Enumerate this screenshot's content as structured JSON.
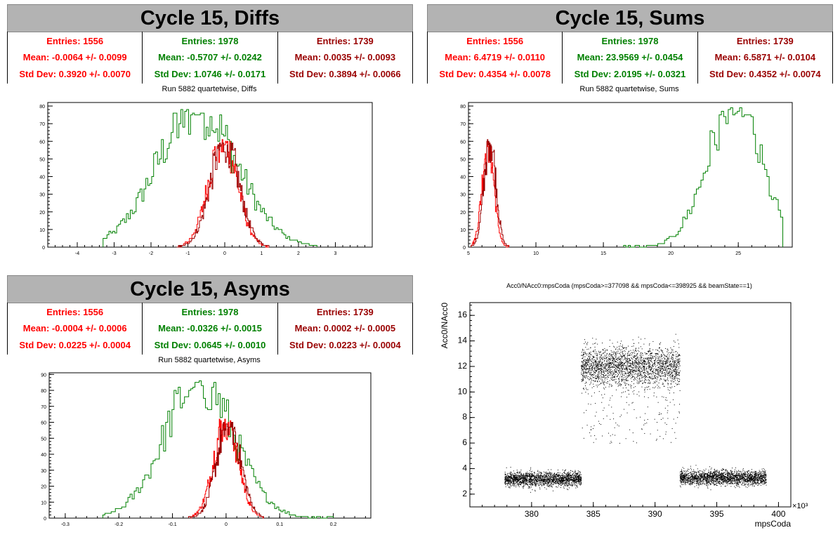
{
  "colors": {
    "red": "#ff0000",
    "green": "#008000",
    "darkred": "#990000",
    "title_bg": "#b3b3b3"
  },
  "panels": {
    "diffs": {
      "header": "Cycle 15, Diffs",
      "plot_title": "Run 5882 quartetwise, Diffs",
      "stats": [
        {
          "entries": "Entries: 1556",
          "mean": "Mean: -0.0064 +/- 0.0099",
          "std": "Std Dev: 0.3920 +/- 0.0070"
        },
        {
          "entries": "Entries: 1978",
          "mean": "Mean: -0.5707 +/- 0.0242",
          "std": "Std Dev: 1.0746 +/- 0.0171"
        },
        {
          "entries": "Entries: 1739",
          "mean": "Mean: 0.0035 +/- 0.0093",
          "std": "Std Dev: 0.3894 +/- 0.0066"
        }
      ]
    },
    "sums": {
      "header": "Cycle 15, Sums",
      "plot_title": "Run 5882 quartetwise, Sums",
      "stats": [
        {
          "entries": "Entries: 1556",
          "mean": "Mean: 6.4719 +/- 0.0110",
          "std": "Std Dev: 0.4354 +/- 0.0078"
        },
        {
          "entries": "Entries: 1978",
          "mean": "Mean: 23.9569 +/- 0.0454",
          "std": "Std Dev: 2.0195 +/- 0.0321"
        },
        {
          "entries": "Entries: 1739",
          "mean": "Mean: 6.5871 +/- 0.0104",
          "std": "Std Dev: 0.4352 +/- 0.0074"
        }
      ]
    },
    "asyms": {
      "header": "Cycle 15, Asyms",
      "plot_title": "Run 5882 quartetwise, Asyms",
      "stats": [
        {
          "entries": "Entries: 1556",
          "mean": "Mean: -0.0004 +/- 0.0006",
          "std": "Std Dev: 0.0225 +/- 0.0004"
        },
        {
          "entries": "Entries: 1978",
          "mean": "Mean: -0.0326 +/- 0.0015",
          "std": "Std Dev: 0.0645 +/- 0.0010"
        },
        {
          "entries": "Entries: 1739",
          "mean": "Mean: 0.0002 +/- 0.0005",
          "std": "Std Dev: 0.0223 +/- 0.0004"
        }
      ]
    },
    "scatter": {
      "plot_title": "Acc0/NAcc0:mpsCoda (mpsCoda>=377098 && mpsCoda<=398925 && beamState==1)"
    }
  },
  "chart_data": [
    {
      "type": "histogram",
      "title": "Run 5882 quartetwise, Diffs",
      "xlim": [
        -4.8,
        4.0
      ],
      "ylim": [
        0,
        82
      ],
      "xticks": [
        -4,
        -3,
        -2,
        -1,
        0,
        1,
        2,
        3
      ],
      "yticks": [
        0,
        10,
        20,
        30,
        40,
        50,
        60,
        70,
        80
      ],
      "series": [
        {
          "color": "green",
          "peak_x": -0.75,
          "peak_y": 79,
          "mean": -0.5707,
          "std": 1.0746,
          "range": [
            -3.3,
            2.5
          ]
        },
        {
          "color": "red",
          "peak_x": -0.05,
          "peak_y": 61,
          "mean": -0.0064,
          "std": 0.392,
          "range": [
            -1.3,
            1.2
          ]
        },
        {
          "color": "darkred",
          "peak_x": 0.0,
          "peak_y": 60,
          "mean": 0.0035,
          "std": 0.3894,
          "range": [
            -1.3,
            1.2
          ]
        }
      ]
    },
    {
      "type": "histogram",
      "title": "Run 5882 quartetwise, Sums",
      "xlim": [
        5,
        29
      ],
      "ylim": [
        0,
        82
      ],
      "xticks": [
        5,
        10,
        15,
        20,
        25
      ],
      "yticks": [
        0,
        10,
        20,
        30,
        40,
        50,
        60,
        70,
        80
      ],
      "series": [
        {
          "color": "red",
          "peak_x": 6.45,
          "peak_y": 60,
          "mean": 6.4719,
          "std": 0.4354,
          "range": [
            5.2,
            8.0
          ]
        },
        {
          "color": "darkred",
          "peak_x": 6.6,
          "peak_y": 62,
          "mean": 6.5871,
          "std": 0.4352,
          "range": [
            5.2,
            8.0
          ]
        },
        {
          "color": "green",
          "peak_x": 24.7,
          "peak_y": 79,
          "mean": 23.9569,
          "std": 2.0195,
          "range": [
            16.5,
            28.3
          ]
        }
      ]
    },
    {
      "type": "histogram",
      "title": "Run 5882 quartetwise, Asyms",
      "xlim": [
        -0.33,
        0.27
      ],
      "ylim": [
        0,
        91
      ],
      "xticks": [
        -0.3,
        -0.2,
        -0.1,
        0,
        0.1,
        0.2
      ],
      "yticks": [
        0,
        10,
        20,
        30,
        40,
        50,
        60,
        70,
        80,
        90
      ],
      "series": [
        {
          "color": "green",
          "peak_x": -0.05,
          "peak_y": 86,
          "mean": -0.0326,
          "std": 0.0645,
          "range": [
            -0.23,
            0.2
          ]
        },
        {
          "color": "red",
          "peak_x": 0.0,
          "peak_y": 62,
          "mean": -0.0004,
          "std": 0.0225,
          "range": [
            -0.07,
            0.07
          ]
        },
        {
          "color": "darkred",
          "peak_x": 0.005,
          "peak_y": 60,
          "mean": 0.0002,
          "std": 0.0223,
          "range": [
            -0.07,
            0.07
          ]
        }
      ]
    },
    {
      "type": "scatter",
      "title": "Acc0/NAcc0:mpsCoda (mpsCoda>=377098 && mpsCoda<=398925 && beamState==1)",
      "xlabel": "mpsCoda",
      "ylabel": "Acc0/NAcc0",
      "x_multiplier": "×10³",
      "xlim": [
        375,
        401
      ],
      "ylim": [
        1,
        17
      ],
      "xticks": [
        380,
        385,
        390,
        395,
        400
      ],
      "yticks": [
        2,
        4,
        6,
        8,
        10,
        12,
        14,
        16
      ],
      "clusters": [
        {
          "x": [
            377.8,
            384.0
          ],
          "y_center": 3.2,
          "y_spread": 0.5
        },
        {
          "x": [
            384.0,
            392.0
          ],
          "y_center": 12.0,
          "y_spread": 1.4
        },
        {
          "x": [
            392.0,
            399.0
          ],
          "y_center": 3.3,
          "y_spread": 0.5
        }
      ]
    }
  ]
}
